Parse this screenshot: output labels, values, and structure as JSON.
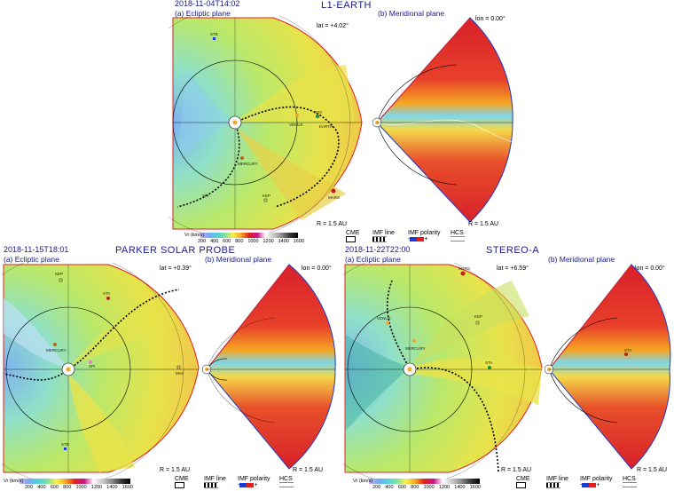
{
  "panels": [
    {
      "title": "L1-EARTH",
      "timestamp": "2018-11-04T14:02",
      "ecliptic_label": "(a) Ecliptic plane",
      "meridional_label": "(b) Meridional plane",
      "lat": "lat = +4.02°",
      "lon": "lon = 0.00°",
      "radius_left": "R = 1.5 AU",
      "radius_right": "R = 1.5 AU",
      "bodies": [
        "STB",
        "VENUS",
        "STA",
        "EARTH",
        "MERCURY",
        "MARS",
        "SPI",
        "KEP"
      ]
    },
    {
      "title": "PARKER SOLAR PROBE",
      "timestamp": "2018-11-15T18:01",
      "ecliptic_label": "(a) Ecliptic plane",
      "meridional_label": "(b) Meridional plane",
      "lat": "lat = +0.39°",
      "lon": "lon = 0.00°",
      "radius_left": "R = 1.5 AU",
      "radius_right": "R = 1.5 AU",
      "bodies": [
        "KEP",
        "STA",
        "MERCURY",
        "SPI",
        "MAY",
        "STB"
      ]
    },
    {
      "title": "STEREO-A",
      "timestamp": "2018-11-22T22:00",
      "ecliptic_label": "(a) Ecliptic plane",
      "meridional_label": "(b) Meridional plane",
      "lat": "lat = +6.59°",
      "lon": "lon = 0.00°",
      "radius_left": "R = 1.5 AU",
      "radius_right": "R = 1.5 AU",
      "bodies": [
        "MARS",
        "KEP",
        "MERCURY",
        "VENUS",
        "STA"
      ]
    }
  ],
  "legend": {
    "colorbar_label": "Vr (km/s)",
    "ticks": [
      "200",
      "400",
      "600",
      "800",
      "1000",
      "1200",
      "1400",
      "1600"
    ],
    "cme": "CME",
    "imf_line": "IMF line",
    "imf_polarity": "IMF polarity",
    "minus": "-",
    "plus": "+",
    "hcs": "HCS"
  },
  "colors": {
    "title": "#1a1a8c",
    "sun": "#f5a623",
    "earth_orbit": "#000000"
  }
}
